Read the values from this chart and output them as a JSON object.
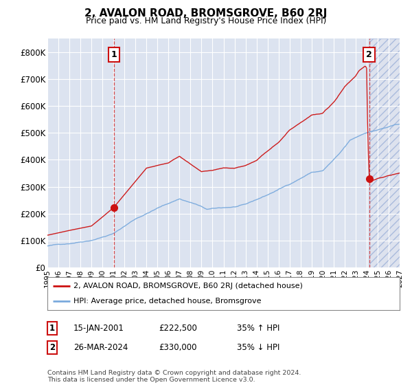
{
  "title": "2, AVALON ROAD, BROMSGROVE, B60 2RJ",
  "subtitle": "Price paid vs. HM Land Registry's House Price Index (HPI)",
  "ylim": [
    0,
    850000
  ],
  "yticks": [
    0,
    100000,
    200000,
    300000,
    400000,
    500000,
    600000,
    700000,
    800000
  ],
  "ytick_labels": [
    "£0",
    "£100K",
    "£200K",
    "£300K",
    "£400K",
    "£500K",
    "£600K",
    "£700K",
    "£800K"
  ],
  "x_start_year": 1995,
  "x_end_year": 2027,
  "xticks": [
    1995,
    1996,
    1997,
    1998,
    1999,
    2000,
    2001,
    2002,
    2003,
    2004,
    2005,
    2006,
    2007,
    2008,
    2009,
    2010,
    2011,
    2012,
    2013,
    2014,
    2015,
    2016,
    2017,
    2018,
    2019,
    2020,
    2021,
    2022,
    2023,
    2024,
    2025,
    2026,
    2027
  ],
  "bg_color": "#dce3f0",
  "grid_color": "#ffffff",
  "hpi_line_color": "#7aaadd",
  "price_line_color": "#cc1111",
  "sale1_x": 2001.04,
  "sale1_y": 222500,
  "sale2_x": 2024.23,
  "sale2_y": 330000,
  "legend_label1": "2, AVALON ROAD, BROMSGROVE, B60 2RJ (detached house)",
  "legend_label2": "HPI: Average price, detached house, Bromsgrove",
  "note1_date": "15-JAN-2001",
  "note1_price": "£222,500",
  "note1_hpi": "35% ↑ HPI",
  "note2_date": "26-MAR-2024",
  "note2_price": "£330,000",
  "note2_hpi": "35% ↓ HPI",
  "footer": "Contains HM Land Registry data © Crown copyright and database right 2024.\nThis data is licensed under the Open Government Licence v3.0.",
  "future_start_x": 2024.23
}
